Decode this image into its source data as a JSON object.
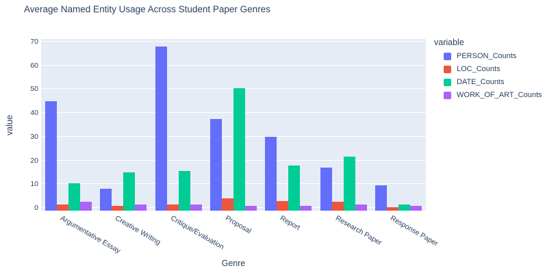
{
  "chart_data": {
    "type": "bar",
    "title": "Average Named Entity Usage Across Student Paper Genres",
    "xlabel": "Genre",
    "ylabel": "value",
    "ylim": [
      0,
      70
    ],
    "yticks": [
      0,
      10,
      20,
      30,
      40,
      50,
      60,
      70
    ],
    "grid": true,
    "legend_position": "right",
    "legend_title": "variable",
    "plot_bgcolor": "#E5ECF6",
    "gridline_color": "#FFFFFF",
    "text_color": "#2a3f5f",
    "categories": [
      "Argumentative Essay",
      "Creative Writing",
      "Critique/Evaluation",
      "Proposal",
      "Report",
      "Research Paper",
      "Response Paper"
    ],
    "series": [
      {
        "name": "PERSON_Counts",
        "color": "#636EFA",
        "values": [
          45,
          8,
          68,
          37.5,
          30,
          17,
          9.5
        ]
      },
      {
        "name": "LOC_Counts",
        "color": "#EF553B",
        "values": [
          1.5,
          1,
          1.5,
          4,
          3,
          2.5,
          0.2
        ]
      },
      {
        "name": "DATE_Counts",
        "color": "#00CC96",
        "values": [
          10.5,
          15,
          15.5,
          50.5,
          18,
          21.5,
          1.5
        ]
      },
      {
        "name": "WORK_OF_ART_Counts",
        "color": "#AB63FA",
        "values": [
          2.5,
          1.5,
          1.5,
          1,
          1,
          1.5,
          1
        ]
      }
    ]
  }
}
